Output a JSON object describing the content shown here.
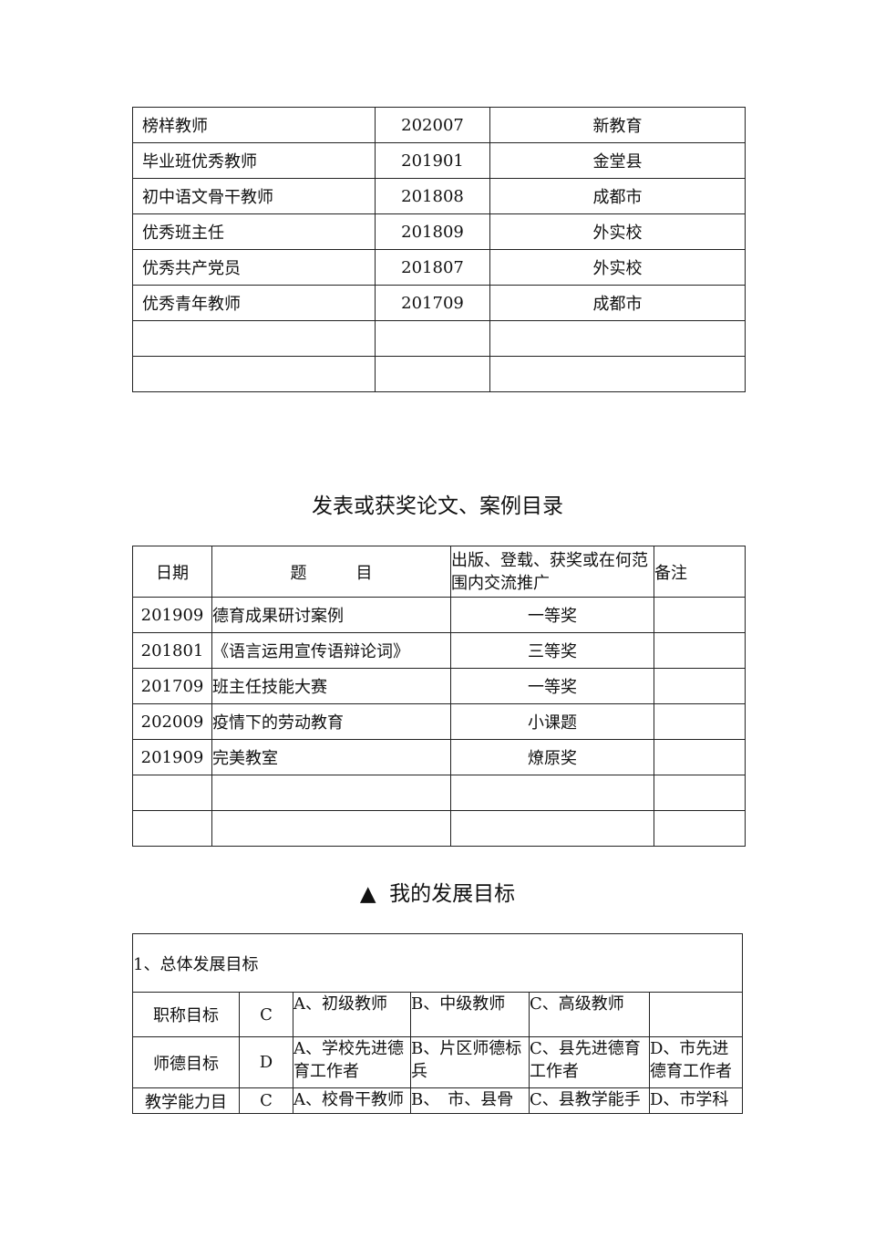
{
  "honors_table": {
    "rows": [
      [
        "榜样教师",
        "202007",
        "新教育"
      ],
      [
        "毕业班优秀教师",
        "201901",
        "金堂县"
      ],
      [
        "初中语文骨干教师",
        "201808",
        "成都市"
      ],
      [
        "优秀班主任",
        "201809",
        "外实校"
      ],
      [
        "优秀共产党员",
        "201807",
        "外实校"
      ],
      [
        "优秀青年教师",
        "201709",
        "成都市"
      ],
      [
        "",
        "",
        ""
      ],
      [
        "",
        "",
        ""
      ]
    ]
  },
  "papers_section": {
    "title": "发表或获奖论文、案例目录",
    "headers": [
      "日期",
      "题　　　目",
      "出版、登载、获奖或在何范围内交流推广",
      "备注"
    ],
    "rows": [
      [
        "201909",
        "德育成果研讨案例",
        "一等奖",
        ""
      ],
      [
        "201801",
        "《语言运用宣传语辩论词》",
        "三等奖",
        ""
      ],
      [
        "201709",
        "班主任技能大赛",
        "一等奖",
        ""
      ],
      [
        "202009",
        "疫情下的劳动教育",
        "小课题",
        ""
      ],
      [
        "201909",
        "完美教室",
        "燎原奖",
        ""
      ],
      [
        "",
        "",
        "",
        ""
      ],
      [
        "",
        "",
        "",
        ""
      ]
    ]
  },
  "goals_section": {
    "title": "我的发展目标",
    "title_icon": "triangle-up-icon",
    "overall_label": "1、总体发展目标",
    "rows": [
      [
        "职称目标",
        "C",
        "A、初级教师",
        "B、中级教师",
        "C、高级教师",
        ""
      ],
      [
        "师德目标",
        "D",
        "A、学校先进德育工作者",
        "B、片区师德标兵",
        "C、县先进德育工作者",
        "D、市先进德育工作者"
      ],
      [
        "教学能力目",
        "C",
        "A、校骨干教师",
        "B、　市、县骨",
        "C、县教学能手",
        "D、市学科"
      ]
    ]
  }
}
